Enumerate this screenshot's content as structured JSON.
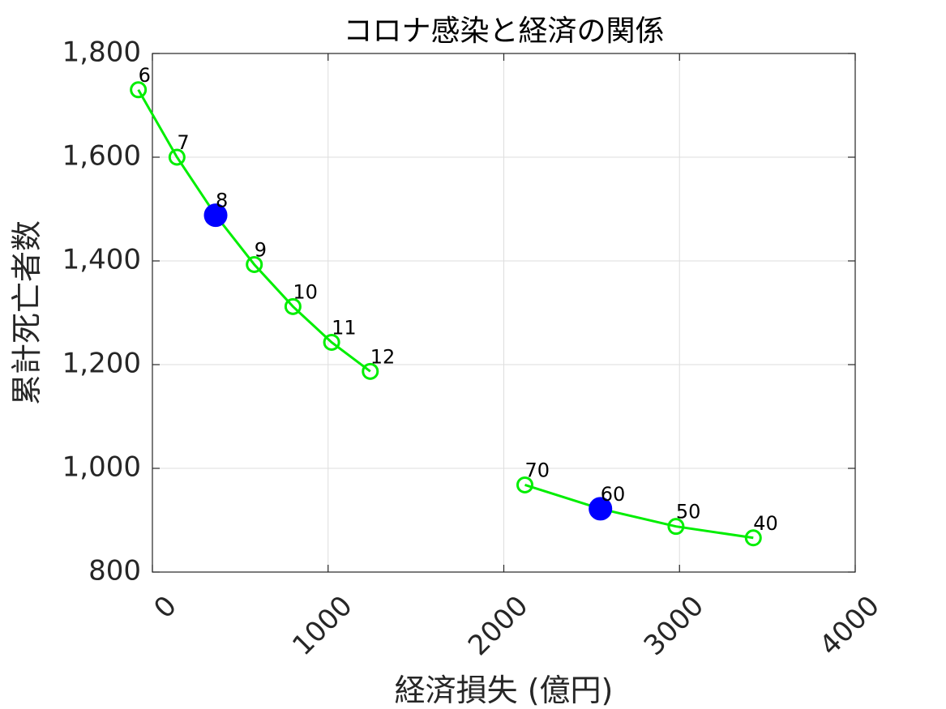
{
  "chart_data": {
    "type": "line",
    "title": "コロナ感染と経済の関係",
    "xlabel": "経済損失 (億円)",
    "ylabel": "累計死亡者数",
    "xlim": [
      0,
      4000
    ],
    "ylim": [
      800,
      1800
    ],
    "xticks": [
      0,
      1000,
      2000,
      3000,
      4000
    ],
    "xtick_labels": [
      "0",
      "1000",
      "2000",
      "3000",
      "4000"
    ],
    "yticks": [
      800,
      1000,
      1200,
      1400,
      1600,
      1800
    ],
    "ytick_labels": [
      "800",
      "1,000",
      "1,200",
      "1,400",
      "1,600",
      "1,800"
    ],
    "grid": true,
    "series": [
      {
        "x": [
          -80,
          140,
          360,
          580,
          800,
          1020,
          1240
        ],
        "y": [
          1730,
          1600,
          1488,
          1393,
          1312,
          1243,
          1187
        ],
        "labels": [
          "6",
          "7",
          "8",
          "9",
          "10",
          "11",
          "12"
        ],
        "color": "#00ee00",
        "highlight_index": 2
      },
      {
        "x": [
          2120,
          2550,
          2980,
          3420
        ],
        "y": [
          968,
          922,
          888,
          866
        ],
        "labels": [
          "70",
          "60",
          "50",
          "40"
        ],
        "color": "#00ee00",
        "highlight_index": 1
      }
    ],
    "highlight_color": "#0000ff"
  }
}
